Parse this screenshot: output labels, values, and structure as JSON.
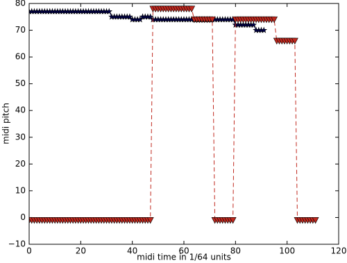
{
  "chart_data": {
    "type": "line",
    "xlabel": "midi time in 1/64 units",
    "ylabel": "midi pitch",
    "xlim": [
      0,
      120
    ],
    "xticks": [
      0,
      20,
      40,
      60,
      80,
      100,
      120
    ],
    "ylim": [
      -10,
      80
    ],
    "yticks": [
      {
        "value": -10,
        "label": "−10"
      },
      0,
      10,
      20,
      30,
      40,
      50,
      60,
      70,
      80
    ],
    "grid": false,
    "x": [
      0,
      1,
      2,
      3,
      4,
      5,
      6,
      7,
      8,
      9,
      10,
      11,
      12,
      13,
      14,
      15,
      16,
      17,
      18,
      19,
      20,
      21,
      22,
      23,
      24,
      25,
      26,
      27,
      28,
      29,
      30,
      31,
      32,
      33,
      34,
      35,
      36,
      37,
      38,
      39,
      40,
      41,
      42,
      43,
      44,
      45,
      46,
      47,
      48,
      49,
      50,
      51,
      52,
      53,
      54,
      55,
      56,
      57,
      58,
      59,
      60,
      61,
      62,
      63,
      64,
      65,
      66,
      67,
      68,
      69,
      70,
      71,
      72,
      73,
      74,
      75,
      76,
      77,
      78,
      79,
      80,
      81,
      82,
      83,
      84,
      85,
      86,
      87,
      88,
      89,
      90,
      91,
      92,
      93,
      94,
      95,
      96,
      97,
      98,
      99,
      100,
      101,
      102,
      103,
      104,
      105,
      106,
      107,
      108,
      109,
      110,
      111
    ],
    "series": [
      {
        "color": "#000050",
        "marker": "star",
        "linestyle": "solid",
        "values": [
          77,
          77,
          77,
          77,
          77,
          77,
          77,
          77,
          77,
          77,
          77,
          77,
          77,
          77,
          77,
          77,
          77,
          77,
          77,
          77,
          77,
          77,
          77,
          77,
          77,
          77,
          77,
          77,
          77,
          77,
          77,
          77,
          75,
          75,
          75,
          75,
          75,
          75,
          75,
          75,
          74,
          74,
          74,
          74,
          75,
          75,
          75,
          75,
          74,
          74,
          74,
          74,
          74,
          74,
          74,
          74,
          74,
          74,
          74,
          74,
          74,
          74,
          74,
          74,
          74,
          74,
          74,
          74,
          74,
          74,
          74,
          74,
          74,
          74,
          74,
          74,
          74,
          74,
          74,
          74,
          72,
          72,
          72,
          72,
          72,
          72,
          72,
          72,
          70,
          70,
          70,
          70,
          null,
          null,
          null,
          null,
          null,
          null,
          null,
          null,
          null,
          null,
          null,
          null,
          null,
          null,
          null,
          null,
          null,
          null,
          null,
          null
        ]
      },
      {
        "color": "#c0281e",
        "marker": "triangle-down",
        "linestyle": "dashed",
        "values": [
          -1,
          -1,
          -1,
          -1,
          -1,
          -1,
          -1,
          -1,
          -1,
          -1,
          -1,
          -1,
          -1,
          -1,
          -1,
          -1,
          -1,
          -1,
          -1,
          -1,
          -1,
          -1,
          -1,
          -1,
          -1,
          -1,
          -1,
          -1,
          -1,
          -1,
          -1,
          -1,
          -1,
          -1,
          -1,
          -1,
          -1,
          -1,
          -1,
          -1,
          -1,
          -1,
          -1,
          -1,
          -1,
          -1,
          -1,
          -1,
          78,
          78,
          78,
          78,
          78,
          78,
          78,
          78,
          78,
          78,
          78,
          78,
          78,
          78,
          78,
          78,
          74,
          74,
          74,
          74,
          74,
          74,
          74,
          74,
          -1,
          -1,
          -1,
          -1,
          -1,
          -1,
          -1,
          -1,
          74,
          74,
          74,
          74,
          74,
          74,
          74,
          74,
          74,
          74,
          74,
          74,
          74,
          74,
          74,
          74,
          66,
          66,
          66,
          66,
          66,
          66,
          66,
          66,
          -1,
          -1,
          -1,
          -1,
          -1,
          -1,
          -1,
          -1
        ]
      }
    ]
  }
}
